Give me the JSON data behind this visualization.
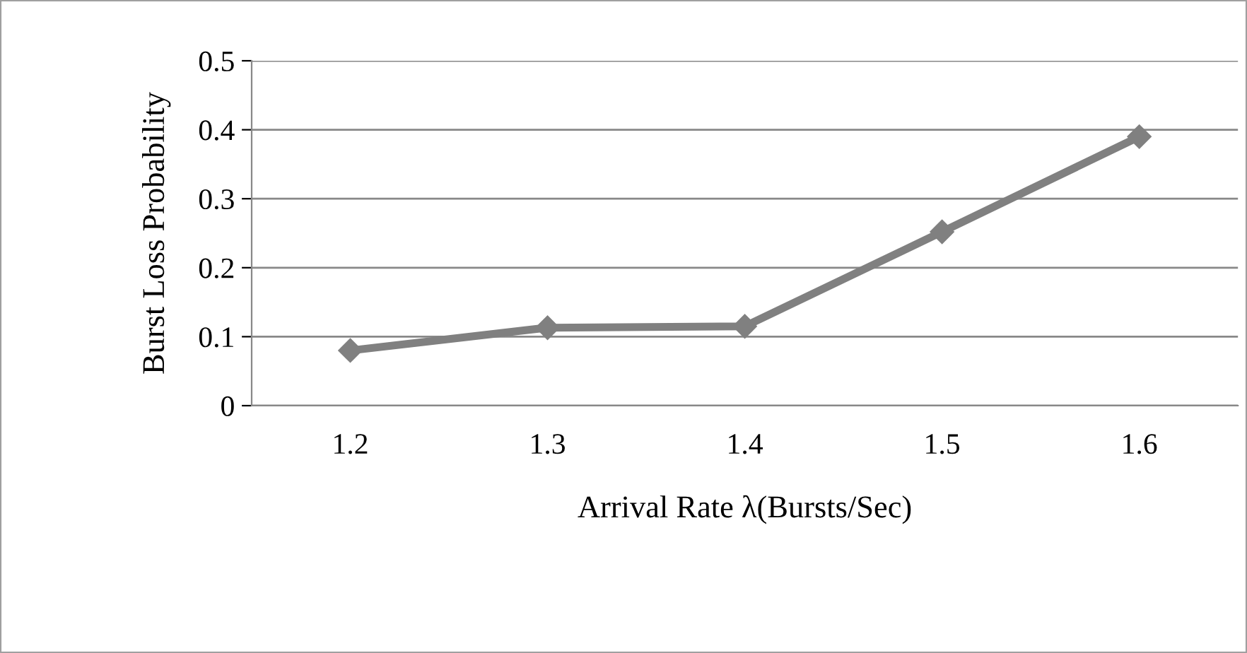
{
  "chart_data": {
    "type": "line",
    "xlabel": "Arrival Rate λ(Bursts/Sec)",
    "ylabel": "Burst Loss Probability",
    "categories": [
      "1.2",
      "1.3",
      "1.4",
      "1.5",
      "1.6"
    ],
    "series": [
      {
        "color": "#808080",
        "values": [
          0.08,
          0.113,
          0.115,
          0.252,
          0.39
        ]
      }
    ],
    "ylim": [
      0,
      0.5
    ],
    "yticks": [
      0,
      0.1,
      0.2,
      0.3,
      0.4,
      0.5
    ],
    "grid": "y",
    "marker": "diamond",
    "line_style": "solid"
  }
}
